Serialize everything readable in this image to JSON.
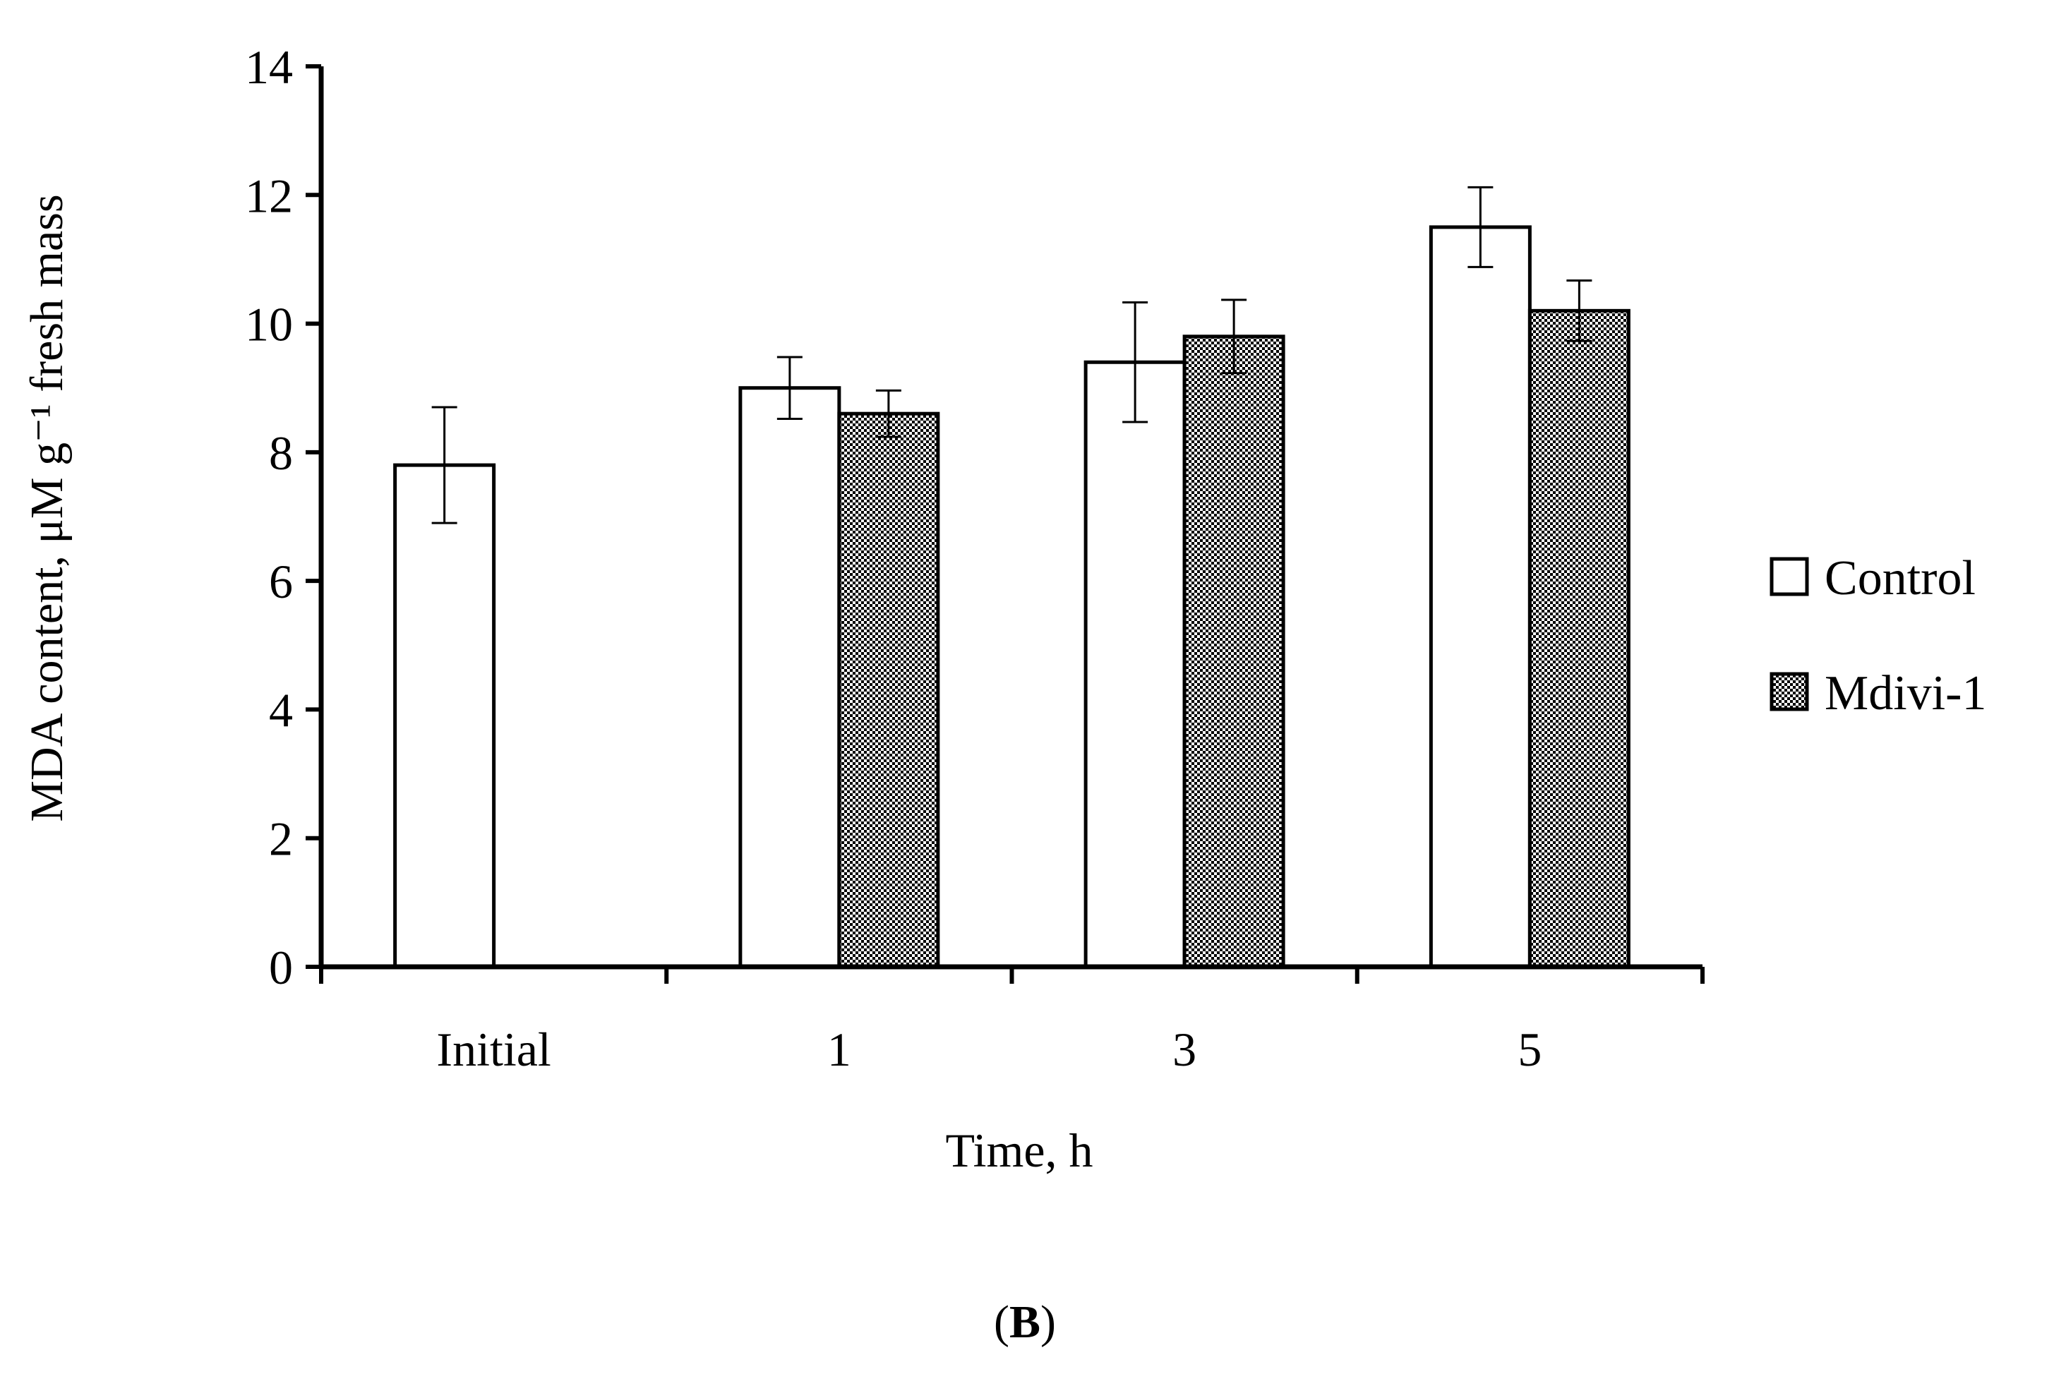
{
  "chart_data": {
    "type": "bar",
    "panel_label": "B",
    "xlabel": "Time, h",
    "ylabel": "MDA content, μM g⁻¹ fresh mass",
    "categories": [
      "Initial",
      "1",
      "3",
      "5"
    ],
    "ylim": [
      0,
      14
    ],
    "yticks": [
      0,
      2,
      4,
      6,
      8,
      10,
      12,
      14
    ],
    "grid": false,
    "legend_position": "right",
    "series": [
      {
        "name": "Control",
        "fill": "white",
        "values": [
          7.8,
          9.0,
          9.4,
          11.5
        ],
        "errors": [
          0.9,
          0.48,
          0.93,
          0.62
        ]
      },
      {
        "name": "Mdivi-1",
        "fill": "checkered",
        "values": [
          null,
          8.6,
          9.8,
          10.2
        ],
        "errors": [
          null,
          0.36,
          0.57,
          0.47
        ]
      }
    ],
    "colors": {
      "axis": "#000000",
      "bar_stroke": "#000000",
      "control_fill": "#ffffff",
      "pattern_dark": "#000000",
      "pattern_light": "#ffffff"
    }
  }
}
